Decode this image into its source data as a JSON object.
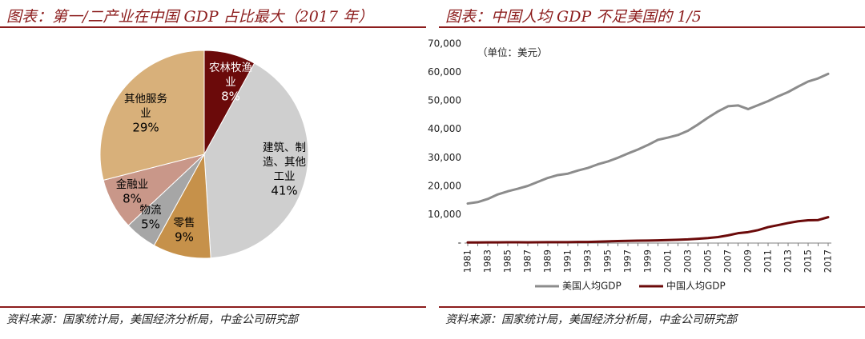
{
  "left": {
    "title": "图表：第一/二产业在中国 GDP 占比最大（2017 年）",
    "source": "资料来源：国家统计局，美国经济分析局，中金公司研究部"
  },
  "right": {
    "title": "图表：中国人均 GDP 不足美国的 1/5",
    "source": "资料来源：国家统计局，美国经济分析局，中金公司研究部"
  },
  "chart_data": [
    {
      "type": "pie",
      "title": "",
      "slices": [
        {
          "label_lines": [
            "农林牧渔",
            "业"
          ],
          "value_label": "8%",
          "value": 8,
          "color": "#6b0a0a",
          "text_color": "#ffffff"
        },
        {
          "label_lines": [
            "建筑、制",
            "造、其他",
            "工业"
          ],
          "value_label": "41%",
          "value": 41,
          "color": "#cfcfcf",
          "text_color": "#000000"
        },
        {
          "label_lines": [
            "零售"
          ],
          "value_label": "9%",
          "value": 9,
          "color": "#c6914a",
          "text_color": "#000000"
        },
        {
          "label_lines": [
            "物流"
          ],
          "value_label": "5%",
          "value": 5,
          "color": "#a6a6a6",
          "text_color": "#000000"
        },
        {
          "label_lines": [
            "金融业"
          ],
          "value_label": "8%",
          "value": 8,
          "color": "#c99789",
          "text_color": "#000000"
        },
        {
          "label_lines": [
            "其他服务",
            "业"
          ],
          "value_label": "29%",
          "value": 29,
          "color": "#d8b07a",
          "text_color": "#000000"
        }
      ]
    },
    {
      "type": "line",
      "annotation": "（单位：美元）",
      "ylim": [
        0,
        70000
      ],
      "yticks": [
        0,
        10000,
        20000,
        30000,
        40000,
        50000,
        60000,
        70000
      ],
      "ytick_labels": [
        "-",
        "10,000",
        "20,000",
        "30,000",
        "40,000",
        "50,000",
        "60,000",
        "70,000"
      ],
      "x": [
        1981,
        1982,
        1983,
        1984,
        1985,
        1986,
        1987,
        1988,
        1989,
        1990,
        1991,
        1992,
        1993,
        1994,
        1995,
        1996,
        1997,
        1998,
        1999,
        2000,
        2001,
        2002,
        2003,
        2004,
        2005,
        2006,
        2007,
        2008,
        2009,
        2010,
        2011,
        2012,
        2013,
        2014,
        2015,
        2016,
        2017
      ],
      "xtick_labels": [
        "1981",
        "1983",
        "1985",
        "1987",
        "1989",
        "1991",
        "1993",
        "1995",
        "1997",
        "1999",
        "2001",
        "2003",
        "2005",
        "2007",
        "2009",
        "2011",
        "2013",
        "2015",
        "2017"
      ],
      "legend_position": "bottom",
      "series": [
        {
          "name": "美国人均GDP",
          "color": "#8c8c8c",
          "values": [
            13900,
            14400,
            15500,
            17100,
            18200,
            19100,
            20100,
            21500,
            22900,
            23900,
            24400,
            25500,
            26400,
            27700,
            28700,
            30000,
            31500,
            32900,
            34500,
            36300,
            37100,
            38000,
            39500,
            41700,
            44100,
            46300,
            48100,
            48400,
            47100,
            48500,
            49900,
            51600,
            53100,
            55000,
            56800,
            57900,
            59500
          ]
        },
        {
          "name": "中国人均GDP",
          "color": "#6b0a0a",
          "values": [
            200,
            200,
            230,
            250,
            290,
            280,
            250,
            280,
            310,
            320,
            330,
            370,
            380,
            480,
            610,
            710,
            780,
            830,
            870,
            960,
            1050,
            1150,
            1290,
            1510,
            1750,
            2100,
            2700,
            3470,
            3840,
            4550,
            5600,
            6300,
            7050,
            7650,
            8000,
            8100,
            9100
          ]
        }
      ]
    }
  ]
}
